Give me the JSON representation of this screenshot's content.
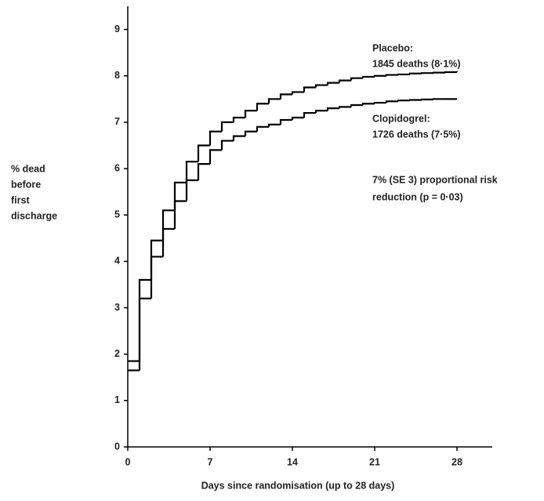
{
  "chart_data": {
    "type": "step",
    "xlabel": "Days since randomisation (up to 28 days)",
    "ylabel_lines": [
      "% dead",
      "before",
      "first",
      "discharge"
    ],
    "x": [
      0,
      1,
      2,
      3,
      4,
      5,
      6,
      7,
      8,
      9,
      10,
      11,
      12,
      13,
      14,
      15,
      16,
      17,
      18,
      19,
      20,
      21,
      22,
      23,
      24,
      25,
      26,
      27,
      28
    ],
    "series": [
      {
        "name": "Placebo",
        "color": "#000000",
        "values": [
          1.85,
          3.6,
          4.45,
          5.1,
          5.7,
          6.15,
          6.5,
          6.8,
          7.0,
          7.1,
          7.25,
          7.4,
          7.5,
          7.6,
          7.65,
          7.75,
          7.8,
          7.85,
          7.9,
          7.95,
          7.98,
          8.0,
          8.02,
          8.03,
          8.05,
          8.06,
          8.07,
          8.08,
          8.1
        ]
      },
      {
        "name": "Clopidogrel",
        "color": "#000000",
        "values": [
          1.65,
          3.2,
          4.1,
          4.7,
          5.3,
          5.75,
          6.1,
          6.4,
          6.6,
          6.7,
          6.8,
          6.9,
          6.95,
          7.05,
          7.1,
          7.2,
          7.25,
          7.3,
          7.33,
          7.37,
          7.4,
          7.42,
          7.45,
          7.47,
          7.48,
          7.49,
          7.5,
          7.5,
          7.5
        ]
      }
    ],
    "annotations": [
      "Placebo:",
      "1845 deaths (8·1%)",
      "Clopidogrel:",
      "1726 deaths (7·5%)",
      "7% (SE 3) proportional risk",
      "reduction (p = 0·03)"
    ],
    "xlim": [
      0,
      31
    ],
    "ylim": [
      0,
      9.5
    ],
    "xticks": [
      0,
      7,
      14,
      21,
      28
    ],
    "yticks": [
      0,
      1,
      2,
      3,
      4,
      5,
      6,
      7,
      8,
      9
    ],
    "grid": false
  }
}
